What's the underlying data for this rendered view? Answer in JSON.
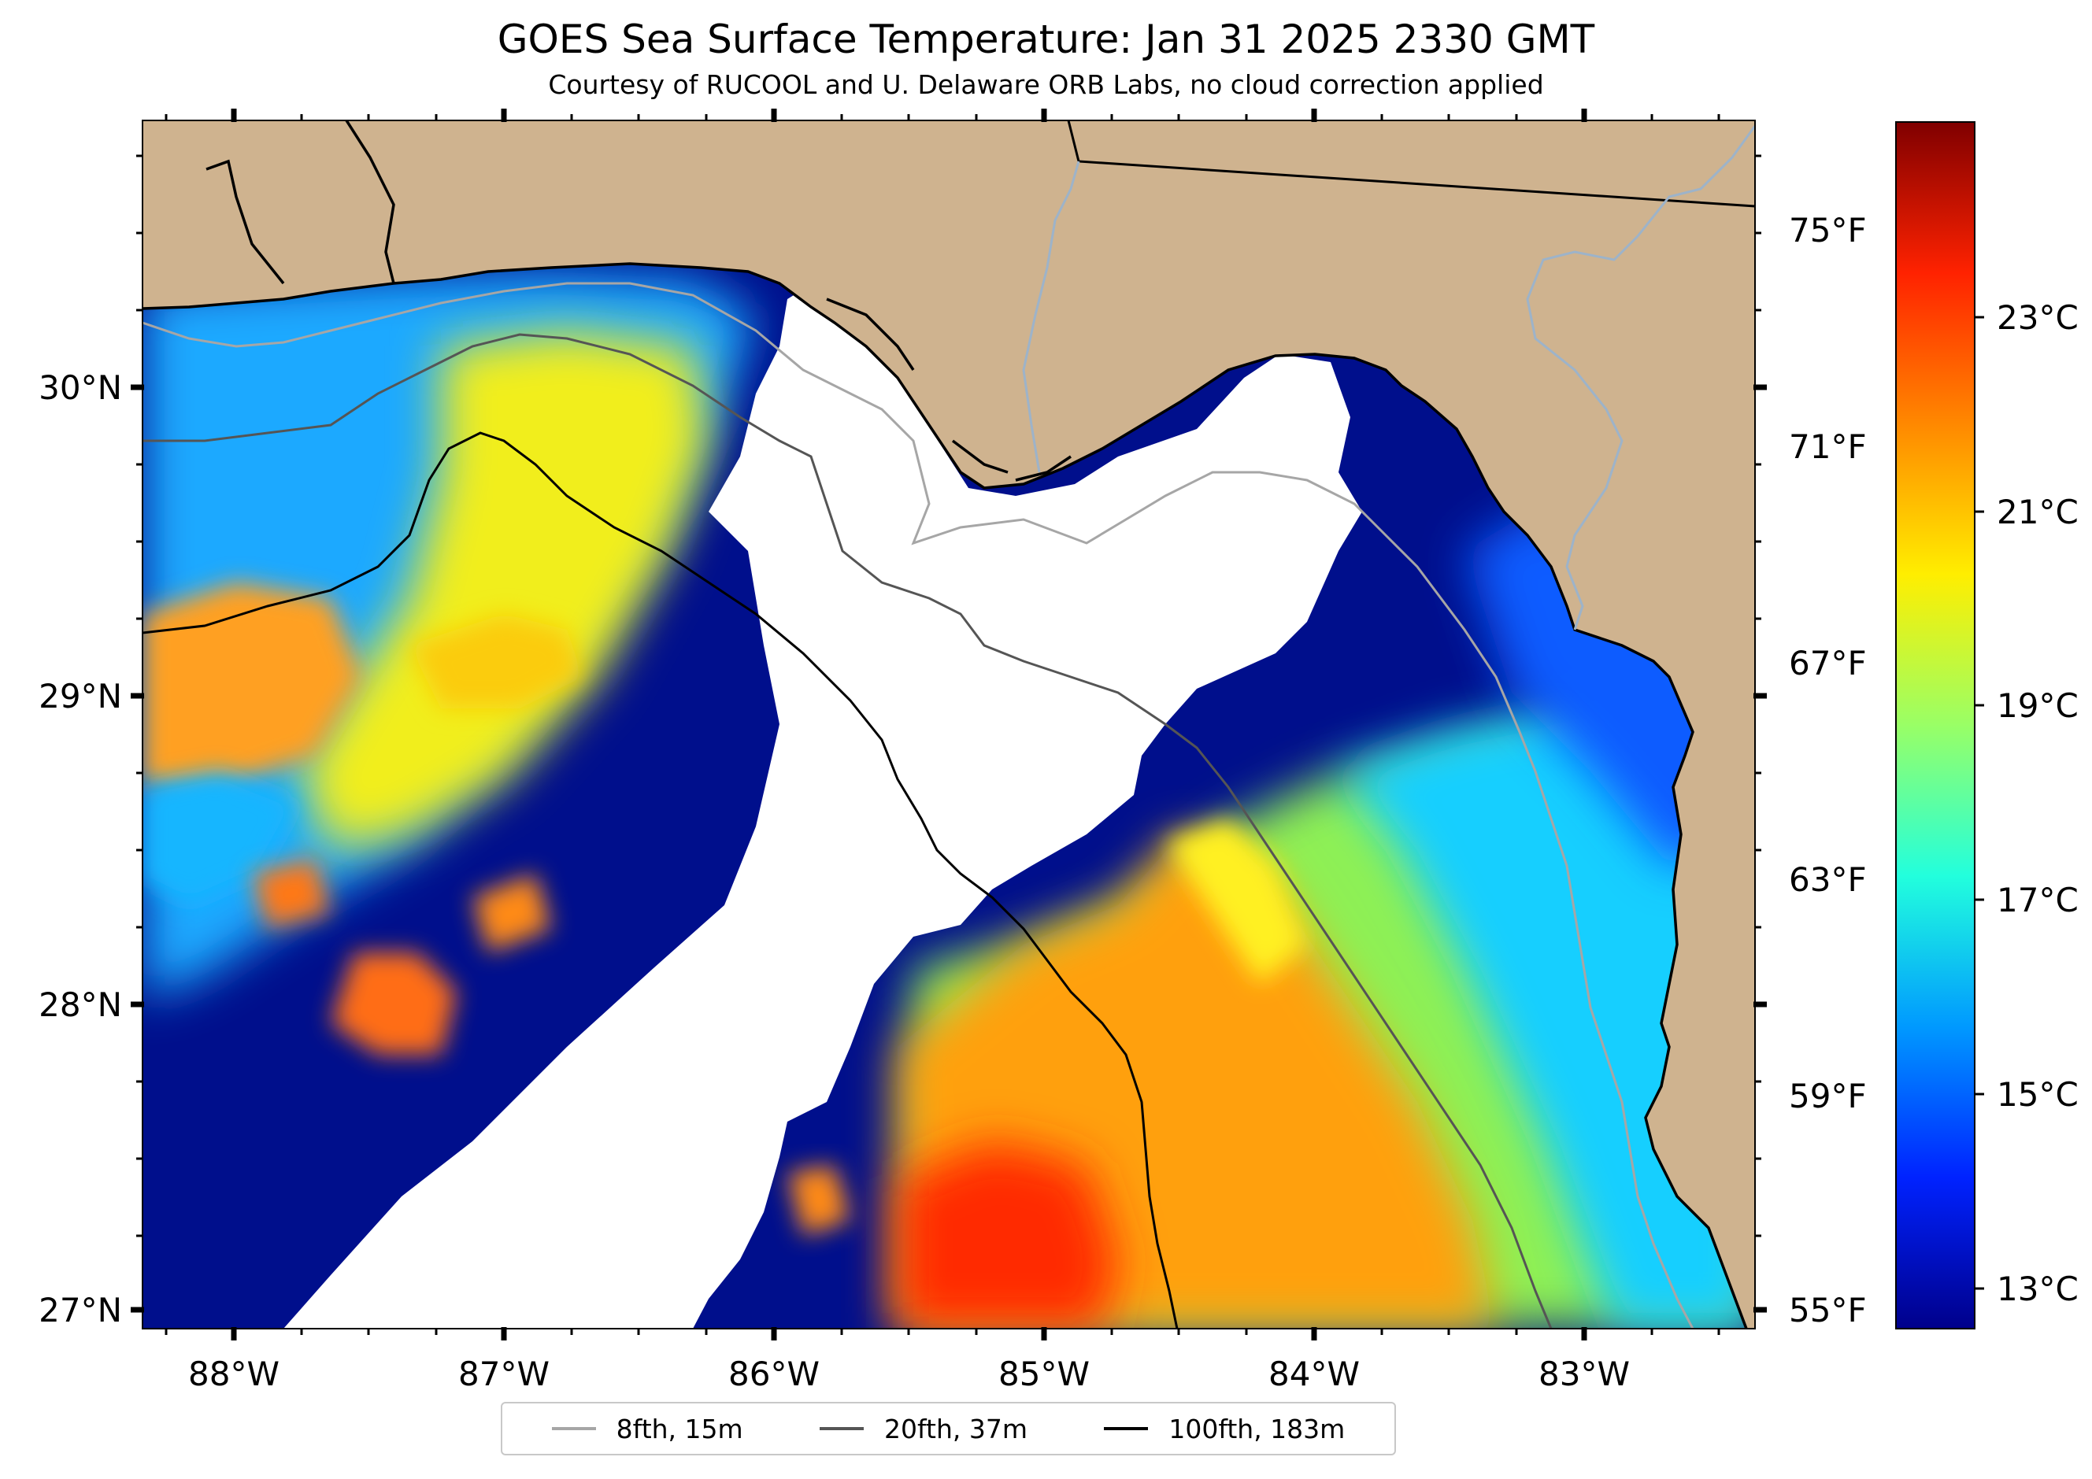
{
  "title": "GOES Sea Surface Temperature: Jan 31 2025 2330 GMT",
  "subtitle": "Courtesy of RUCOOL and U. Delaware ORB Labs, no cloud correction applied",
  "lon_labels": [
    "88°W",
    "87°W",
    "86°W",
    "85°W",
    "84°W",
    "83°W"
  ],
  "lat_labels": [
    "30°N",
    "29°N",
    "28°N",
    "27°N"
  ],
  "fahrenheit_labels": [
    "75°F",
    "71°F",
    "67°F",
    "63°F",
    "59°F",
    "55°F"
  ],
  "celsius_labels": [
    "23°C",
    "21°C",
    "19°C",
    "17°C",
    "15°C",
    "13°C"
  ],
  "colorbar_colors": [
    "#800000",
    "#ff2200",
    "#ff8800",
    "#ffee00",
    "#99ff66",
    "#22ffdd",
    "#0099ff",
    "#0022ff",
    "#00008b"
  ],
  "colors": {
    "land": "#cfb38f",
    "no_data": "#ffffff",
    "cold_water": "#000f8c",
    "isobath_8fth": "#a6a6a6",
    "isobath_20fth": "#555555",
    "isobath_100fth": "#000000",
    "rivers": "#9db3c9"
  },
  "legend": [
    {
      "label": "8fth, 15m",
      "color": "#a6a6a6"
    },
    {
      "label": "20fth, 37m",
      "color": "#555555"
    },
    {
      "label": "100fth, 183m",
      "color": "#000000"
    }
  ]
}
